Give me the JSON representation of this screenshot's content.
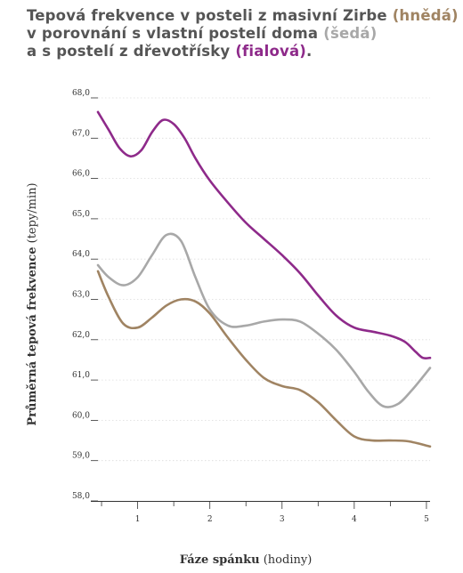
{
  "title": {
    "line1_text": "Tepová frekvence v posteli z masivní Zirbe ",
    "line1_hl": "(hnědá)",
    "line2_text": "v porovnání s vlastní postelí doma ",
    "line2_hl": "(šedá)",
    "line3_text": "a s postelí z dřevotřísky ",
    "line3_hl": "(fialová)",
    "line3_end": "."
  },
  "colors": {
    "brown": "#a08463",
    "gray": "#a8a8a8",
    "purple": "#8e2a8a",
    "title_text": "#555555"
  },
  "chart_data": {
    "type": "line",
    "xlabel_bold": "Fáze spánku",
    "xlabel_normal": " (hodiny)",
    "ylabel_bold": "Průměrná tepová frekvence",
    "ylabel_normal": " (tepy/min)",
    "xlim": [
      0.45,
      5.05
    ],
    "ylim": [
      58.0,
      68.0
    ],
    "x_ticks": [
      1,
      2,
      3,
      4,
      5
    ],
    "y_ticks": [
      "58,0",
      "59,0",
      "60,0",
      "61,0",
      "62,0",
      "63,0",
      "64,0",
      "65,0",
      "66,0",
      "67,0",
      "68,0"
    ],
    "series": [
      {
        "color": "#8e2a8a",
        "x": [
          0.45,
          0.6,
          0.75,
          0.9,
          1.05,
          1.2,
          1.35,
          1.5,
          1.65,
          1.8,
          2.0,
          2.25,
          2.5,
          2.75,
          3.0,
          3.25,
          3.5,
          3.75,
          4.0,
          4.25,
          4.5,
          4.7,
          4.85,
          4.95,
          5.05
        ],
        "y": [
          67.65,
          67.2,
          66.75,
          66.55,
          66.7,
          67.15,
          67.45,
          67.35,
          67.0,
          66.5,
          65.95,
          65.4,
          64.9,
          64.5,
          64.1,
          63.65,
          63.1,
          62.6,
          62.3,
          62.2,
          62.1,
          61.95,
          61.7,
          61.55,
          61.55
        ]
      },
      {
        "color": "#a8a8a8",
        "x": [
          0.45,
          0.6,
          0.8,
          1.0,
          1.2,
          1.4,
          1.6,
          1.8,
          2.0,
          2.25,
          2.5,
          2.75,
          3.0,
          3.25,
          3.5,
          3.75,
          4.0,
          4.2,
          4.4,
          4.6,
          4.8,
          5.05
        ],
        "y": [
          63.85,
          63.55,
          63.35,
          63.55,
          64.1,
          64.6,
          64.45,
          63.55,
          62.75,
          62.35,
          62.35,
          62.45,
          62.5,
          62.45,
          62.15,
          61.75,
          61.2,
          60.7,
          60.35,
          60.4,
          60.75,
          61.3
        ]
      },
      {
        "color": "#a08463",
        "x": [
          0.45,
          0.6,
          0.8,
          1.0,
          1.2,
          1.4,
          1.6,
          1.8,
          2.0,
          2.25,
          2.5,
          2.75,
          3.0,
          3.25,
          3.5,
          3.75,
          4.0,
          4.25,
          4.5,
          4.75,
          5.05
        ],
        "y": [
          63.7,
          63.05,
          62.4,
          62.3,
          62.55,
          62.85,
          63.0,
          62.95,
          62.65,
          62.05,
          61.5,
          61.05,
          60.85,
          60.75,
          60.45,
          60.0,
          59.6,
          59.5,
          59.5,
          59.48,
          59.35
        ]
      }
    ]
  }
}
